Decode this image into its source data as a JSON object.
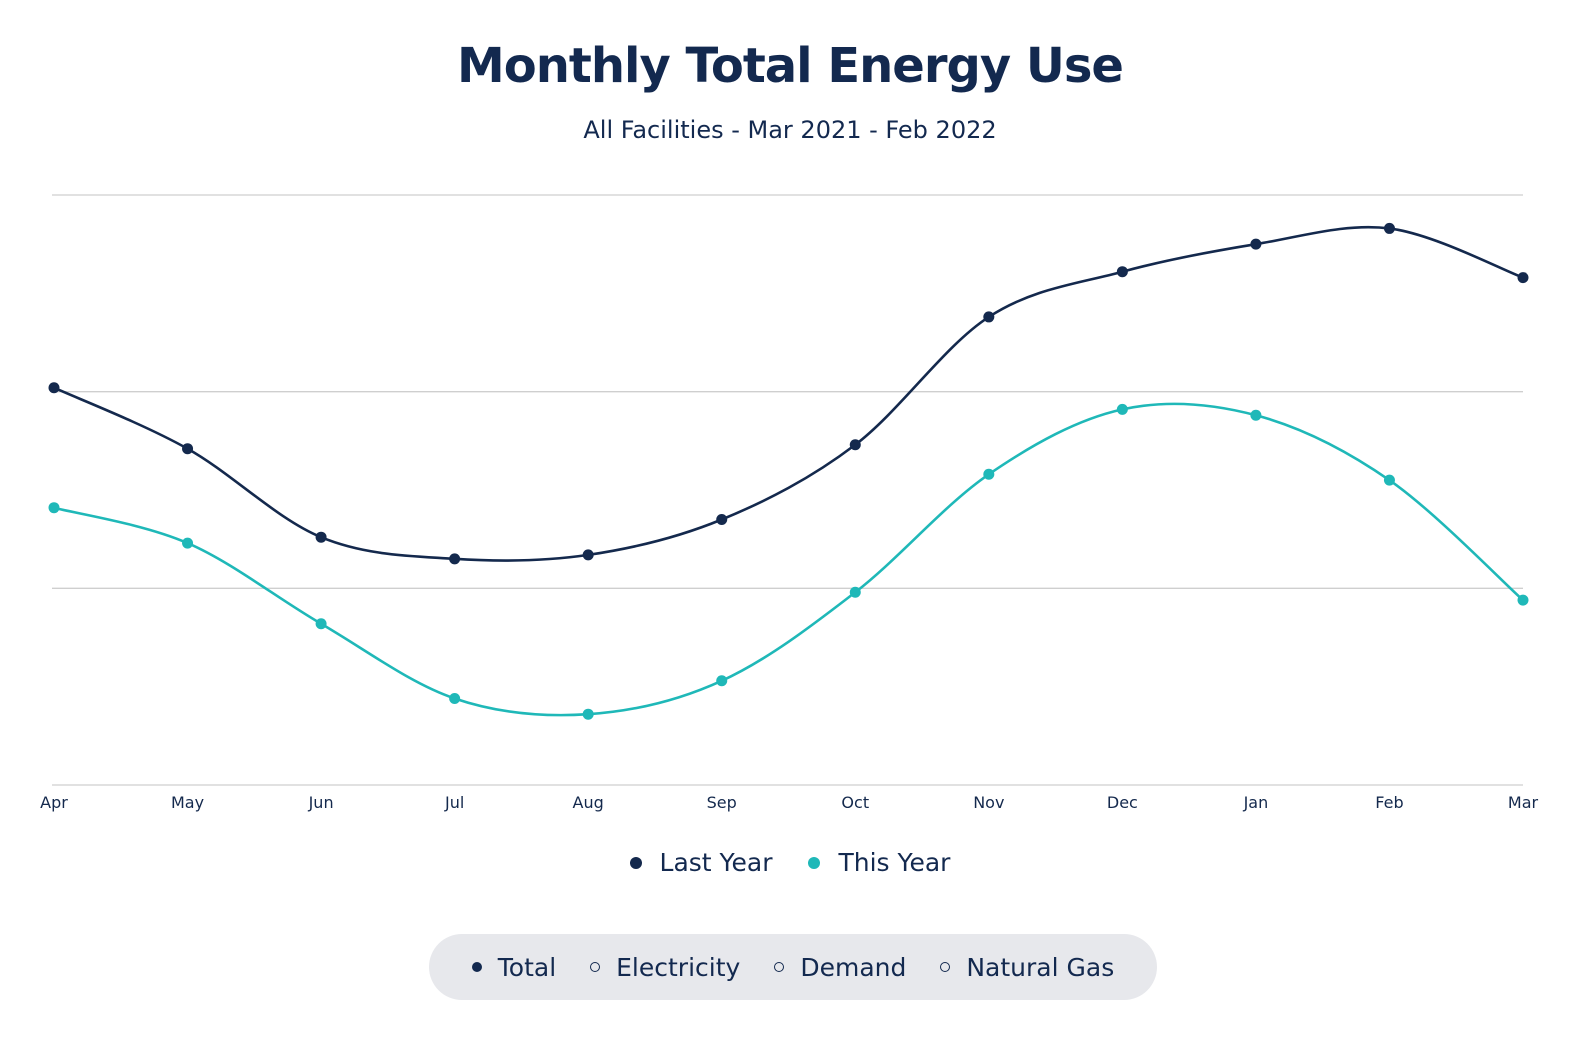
{
  "header": {
    "title": "Monthly Total Energy Use",
    "subtitle": "All Facilities  - Mar 2021 - Feb 2022"
  },
  "colors": {
    "last_year": "#14294d",
    "this_year": "#1fb8b8",
    "grid": "#cfcfcf"
  },
  "chart_data": {
    "type": "line",
    "title": "Monthly Total Energy Use",
    "subtitle": "All Facilities  - Mar 2021 - Feb 2022",
    "xlabel": "",
    "ylabel": "",
    "categories": [
      "Apr",
      "May",
      "Jun",
      "Jul",
      "Aug",
      "Sep",
      "Oct",
      "Nov",
      "Dec",
      "Jan",
      "Feb",
      "Mar"
    ],
    "ylim": [
      0,
      3
    ],
    "grid": true,
    "legend_position": "bottom-center",
    "series": [
      {
        "name": "Last Year",
        "color": "#14294d",
        "values": [
          2.02,
          1.71,
          1.26,
          1.15,
          1.17,
          1.35,
          1.73,
          2.38,
          2.61,
          2.75,
          2.83,
          2.58
        ]
      },
      {
        "name": "This Year",
        "color": "#1fb8b8",
        "values": [
          1.41,
          1.23,
          0.82,
          0.44,
          0.36,
          0.53,
          0.98,
          1.58,
          1.91,
          1.88,
          1.55,
          0.94
        ]
      }
    ]
  },
  "legend": {
    "items": [
      {
        "label": "Last Year",
        "color": "#14294d"
      },
      {
        "label": "This Year",
        "color": "#1fb8b8"
      }
    ]
  },
  "filters": {
    "selected": "Total",
    "options": [
      {
        "label": "Total"
      },
      {
        "label": "Electricity"
      },
      {
        "label": "Demand"
      },
      {
        "label": "Natural Gas"
      }
    ]
  }
}
